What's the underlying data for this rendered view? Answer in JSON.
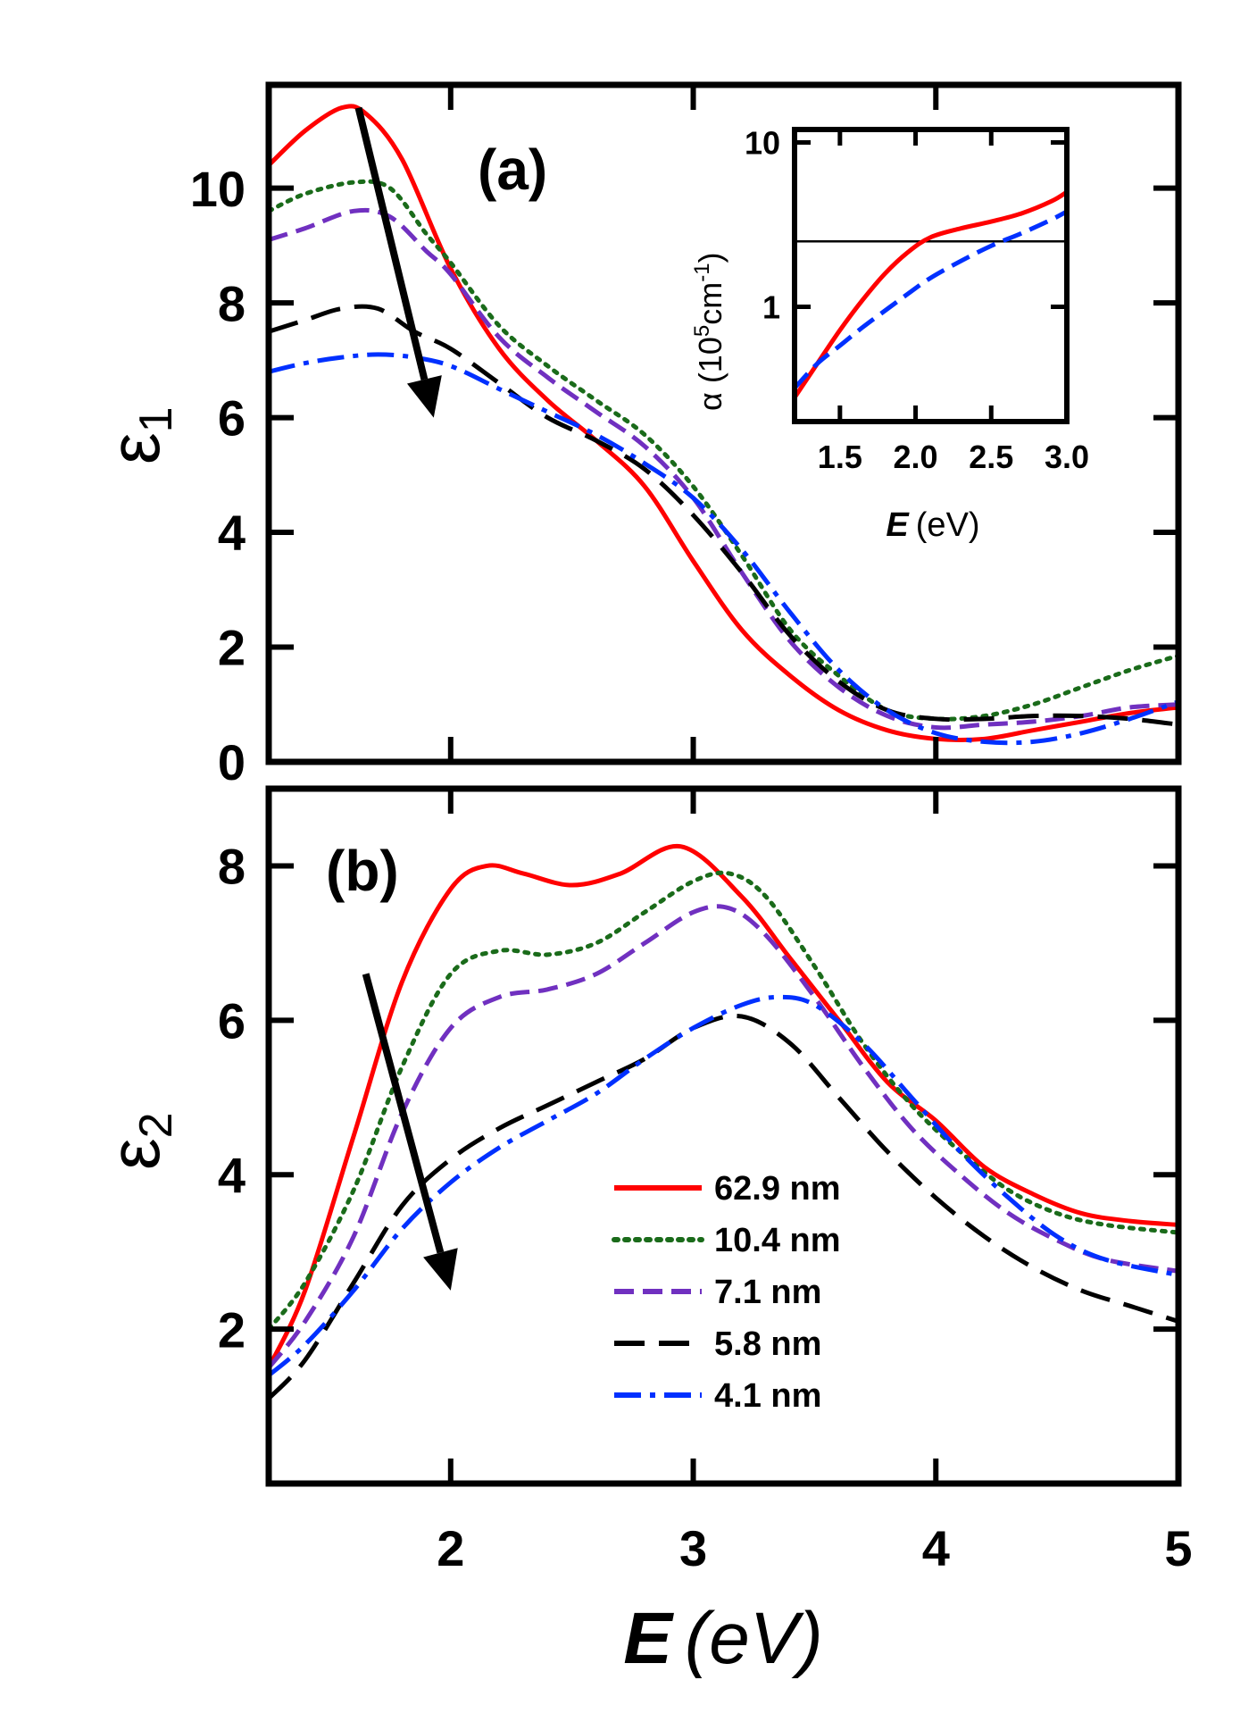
{
  "chart_data": [
    {
      "panel": "a",
      "type": "line",
      "panel_label": "(a)",
      "ylabel": "ε",
      "ylabel_sub": "1",
      "xlim": [
        1.25,
        5.0
      ],
      "ylim": [
        0,
        11.8
      ],
      "yticks": [
        0,
        2,
        4,
        6,
        8,
        10
      ],
      "ytick_labels": [
        "0",
        "2",
        "4",
        "6",
        "8",
        "10"
      ],
      "arrow": {
        "from": [
          1.62,
          11.4
        ],
        "to": [
          1.93,
          6.0
        ]
      },
      "series": [
        {
          "name": "62.9 nm",
          "color": "#ff0000",
          "dash": "solid",
          "x": [
            1.25,
            1.4,
            1.55,
            1.65,
            1.8,
            2.0,
            2.2,
            2.4,
            2.6,
            2.8,
            3.0,
            3.2,
            3.4,
            3.6,
            3.8,
            4.0,
            4.2,
            4.4,
            4.6,
            4.8,
            5.0
          ],
          "y": [
            10.4,
            11.0,
            11.4,
            11.3,
            10.5,
            8.6,
            7.2,
            6.3,
            5.6,
            4.8,
            3.5,
            2.3,
            1.5,
            0.9,
            0.55,
            0.4,
            0.4,
            0.55,
            0.7,
            0.85,
            0.95
          ]
        },
        {
          "name": "10.4 nm",
          "color": "#1a6b1a",
          "dash": "dot",
          "x": [
            1.25,
            1.4,
            1.6,
            1.75,
            1.9,
            2.0,
            2.2,
            2.4,
            2.6,
            2.8,
            3.0,
            3.2,
            3.4,
            3.6,
            3.8,
            4.0,
            4.2,
            4.4,
            4.6,
            4.8,
            5.0
          ],
          "y": [
            9.6,
            9.9,
            10.1,
            10.0,
            9.2,
            8.7,
            7.6,
            6.9,
            6.3,
            5.7,
            4.8,
            3.6,
            2.3,
            1.5,
            0.9,
            0.75,
            0.8,
            1.0,
            1.3,
            1.6,
            1.85
          ]
        },
        {
          "name": "7.1 nm",
          "color": "#7030c0",
          "dash": "dash",
          "x": [
            1.25,
            1.4,
            1.6,
            1.75,
            1.9,
            2.0,
            2.2,
            2.4,
            2.6,
            2.8,
            3.0,
            3.2,
            3.4,
            3.6,
            3.8,
            4.0,
            4.2,
            4.4,
            4.6,
            4.8,
            5.0
          ],
          "y": [
            9.1,
            9.3,
            9.6,
            9.5,
            8.9,
            8.5,
            7.4,
            6.7,
            6.1,
            5.5,
            4.6,
            3.3,
            2.1,
            1.3,
            0.8,
            0.6,
            0.65,
            0.7,
            0.8,
            0.95,
            1.0
          ]
        },
        {
          "name": "5.8 nm",
          "color": "#000000",
          "dash": "longdash",
          "x": [
            1.25,
            1.4,
            1.55,
            1.7,
            1.85,
            2.0,
            2.2,
            2.4,
            2.6,
            2.8,
            3.0,
            3.2,
            3.4,
            3.6,
            3.8,
            4.0,
            4.2,
            4.4,
            4.6,
            4.8,
            5.0
          ],
          "y": [
            7.5,
            7.7,
            7.9,
            7.9,
            7.5,
            7.2,
            6.6,
            6.0,
            5.6,
            5.1,
            4.3,
            3.3,
            2.2,
            1.4,
            0.9,
            0.75,
            0.75,
            0.8,
            0.8,
            0.75,
            0.65
          ]
        },
        {
          "name": "4.1 nm",
          "color": "#0030ff",
          "dash": "dashdot",
          "x": [
            1.25,
            1.4,
            1.55,
            1.7,
            1.85,
            2.0,
            2.2,
            2.4,
            2.6,
            2.8,
            3.0,
            3.2,
            3.4,
            3.6,
            3.8,
            4.0,
            4.2,
            4.4,
            4.6,
            4.8,
            5.0
          ],
          "y": [
            6.8,
            6.95,
            7.05,
            7.1,
            7.05,
            6.9,
            6.5,
            6.1,
            5.7,
            5.2,
            4.6,
            3.7,
            2.6,
            1.6,
            0.9,
            0.5,
            0.35,
            0.35,
            0.5,
            0.75,
            1.05
          ]
        }
      ]
    },
    {
      "panel": "b",
      "type": "line",
      "panel_label": "(b)",
      "ylabel": "ε",
      "ylabel_sub": "2",
      "xlabel": "E",
      "xlabel_units": "(eV)",
      "xlim": [
        1.25,
        5.0
      ],
      "ylim": [
        0,
        9.0
      ],
      "xticks": [
        2,
        3,
        4,
        5
      ],
      "xtick_labels": [
        "2",
        "3",
        "4",
        "5"
      ],
      "yticks": [
        2,
        4,
        6,
        8
      ],
      "ytick_labels": [
        "2",
        "4",
        "6",
        "8"
      ],
      "arrow": {
        "from": [
          1.65,
          6.6
        ],
        "to": [
          2.0,
          2.5
        ]
      },
      "series": [
        {
          "name": "62.9 nm",
          "color": "#ff0000",
          "dash": "solid",
          "x": [
            1.25,
            1.4,
            1.6,
            1.8,
            2.0,
            2.15,
            2.3,
            2.5,
            2.7,
            2.95,
            3.2,
            3.4,
            3.6,
            3.8,
            4.0,
            4.2,
            4.4,
            4.6,
            4.8,
            5.0
          ],
          "y": [
            1.5,
            2.5,
            4.5,
            6.5,
            7.7,
            8.0,
            7.9,
            7.75,
            7.9,
            8.25,
            7.6,
            6.8,
            6.0,
            5.2,
            4.7,
            4.1,
            3.75,
            3.5,
            3.4,
            3.35
          ]
        },
        {
          "name": "10.4 nm",
          "color": "#1a6b1a",
          "dash": "dot",
          "x": [
            1.25,
            1.4,
            1.6,
            1.8,
            2.0,
            2.2,
            2.4,
            2.6,
            2.8,
            3.0,
            3.15,
            3.3,
            3.5,
            3.7,
            3.9,
            4.1,
            4.3,
            4.5,
            4.7,
            5.0
          ],
          "y": [
            2.0,
            2.6,
            3.8,
            5.4,
            6.6,
            6.9,
            6.85,
            7.0,
            7.4,
            7.8,
            7.9,
            7.6,
            6.7,
            5.7,
            4.9,
            4.3,
            3.8,
            3.5,
            3.35,
            3.25
          ]
        },
        {
          "name": "7.1 nm",
          "color": "#7030c0",
          "dash": "dash",
          "x": [
            1.25,
            1.4,
            1.6,
            1.8,
            2.0,
            2.2,
            2.4,
            2.6,
            2.8,
            3.0,
            3.15,
            3.3,
            3.5,
            3.7,
            3.9,
            4.1,
            4.3,
            4.5,
            4.7,
            5.0
          ],
          "y": [
            1.5,
            2.1,
            3.2,
            4.8,
            5.9,
            6.3,
            6.4,
            6.6,
            7.0,
            7.4,
            7.45,
            7.1,
            6.3,
            5.4,
            4.6,
            4.0,
            3.5,
            3.15,
            2.9,
            2.75
          ]
        },
        {
          "name": "5.8 nm",
          "color": "#000000",
          "dash": "longdash",
          "x": [
            1.25,
            1.4,
            1.6,
            1.8,
            2.0,
            2.2,
            2.4,
            2.6,
            2.8,
            3.0,
            3.2,
            3.4,
            3.6,
            3.8,
            4.0,
            4.2,
            4.4,
            4.6,
            4.8,
            5.0
          ],
          "y": [
            1.1,
            1.6,
            2.6,
            3.6,
            4.2,
            4.6,
            4.9,
            5.2,
            5.5,
            5.9,
            6.05,
            5.7,
            5.0,
            4.3,
            3.7,
            3.2,
            2.8,
            2.5,
            2.3,
            2.1
          ]
        },
        {
          "name": "4.1 nm",
          "color": "#0030ff",
          "dash": "dashdot",
          "x": [
            1.25,
            1.4,
            1.6,
            1.8,
            2.0,
            2.2,
            2.4,
            2.6,
            2.8,
            3.0,
            3.2,
            3.35,
            3.5,
            3.7,
            3.9,
            4.1,
            4.3,
            4.5,
            4.7,
            5.0
          ],
          "y": [
            1.4,
            1.8,
            2.5,
            3.3,
            3.9,
            4.35,
            4.7,
            5.05,
            5.5,
            5.9,
            6.2,
            6.3,
            6.2,
            5.7,
            5.0,
            4.3,
            3.7,
            3.2,
            2.9,
            2.7
          ]
        }
      ]
    },
    {
      "panel": "inset",
      "type": "line",
      "yscale": "log",
      "ylabel": "α (10",
      "ylabel_sup": "5",
      "ylabel_tail": "cm",
      "ylabel_sup2": "-1",
      "ylabel_close": ")",
      "xlabel": "E",
      "xlabel_units": "(eV)",
      "xlim": [
        1.2,
        3.0
      ],
      "ylim": [
        0.2,
        12
      ],
      "xticks": [
        1.5,
        2.0,
        2.5,
        3.0
      ],
      "xtick_labels": [
        "1.5",
        "2.0",
        "2.5",
        "3.0"
      ],
      "yticks": [
        1,
        10
      ],
      "ytick_labels": [
        "1",
        "10"
      ],
      "hline": 2.5,
      "series": [
        {
          "name": "62.9 nm",
          "color": "#ff0000",
          "dash": "solid",
          "x": [
            1.2,
            1.35,
            1.5,
            1.65,
            1.8,
            1.95,
            2.1,
            2.3,
            2.5,
            2.7,
            2.9,
            3.0
          ],
          "y": [
            0.28,
            0.45,
            0.72,
            1.1,
            1.6,
            2.15,
            2.65,
            3.0,
            3.3,
            3.7,
            4.4,
            5.0
          ]
        },
        {
          "name": "4.1 nm",
          "color": "#0030ff",
          "dash": "dash",
          "x": [
            1.2,
            1.35,
            1.5,
            1.65,
            1.8,
            1.95,
            2.1,
            2.3,
            2.5,
            2.7,
            2.9,
            3.0
          ],
          "y": [
            0.32,
            0.45,
            0.58,
            0.75,
            0.95,
            1.2,
            1.5,
            1.9,
            2.35,
            2.8,
            3.4,
            3.8
          ]
        }
      ]
    }
  ],
  "legend": {
    "placement": "lower-middle of panel b",
    "entries": [
      {
        "label": "62.9 nm",
        "color": "#ff0000",
        "dash": "solid"
      },
      {
        "label": "10.4 nm",
        "color": "#1a6b1a",
        "dash": "dot"
      },
      {
        "label": "7.1 nm",
        "color": "#7030c0",
        "dash": "dash"
      },
      {
        "label": "5.8 nm",
        "color": "#000000",
        "dash": "longdash"
      },
      {
        "label": "4.1 nm",
        "color": "#0030ff",
        "dash": "dashdot"
      }
    ]
  }
}
